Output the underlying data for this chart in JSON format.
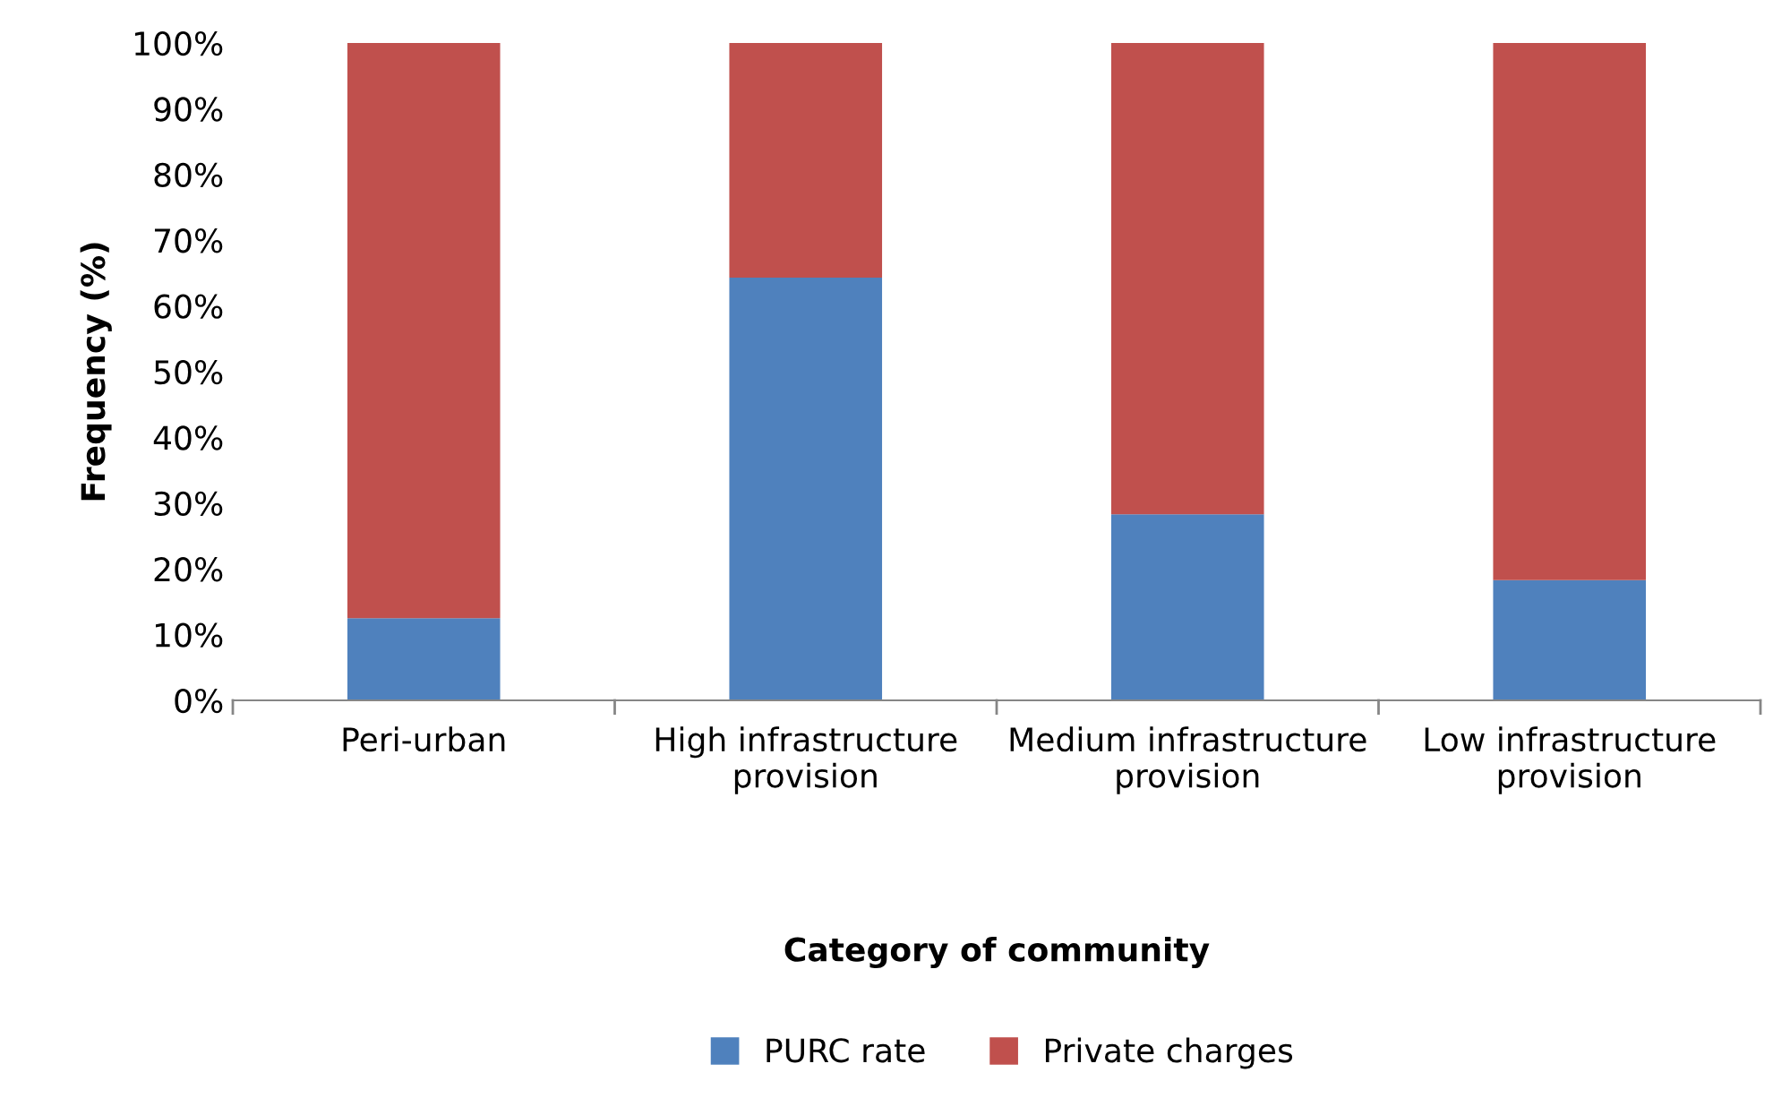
{
  "chart_data": {
    "type": "bar",
    "stacked": true,
    "xlabel": "Category of community",
    "ylabel": "Frequency (%)",
    "categories": [
      "Peri-urban",
      "High infrastructure provision",
      "Medium infrastructure provision",
      "Low infrastructure provision"
    ],
    "series": [
      {
        "name": "PURC rate",
        "color": "#4f81bd",
        "values": [
          12.5,
          64.3,
          28.3,
          18.3
        ]
      },
      {
        "name": "Private charges",
        "color": "#c0504d",
        "values": [
          87.5,
          35.7,
          71.7,
          81.7
        ]
      }
    ],
    "ylim": [
      0,
      100
    ],
    "yticks": [
      {
        "value": 0,
        "label": "0%"
      },
      {
        "value": 10,
        "label": "10%"
      },
      {
        "value": 20,
        "label": "20%"
      },
      {
        "value": 30,
        "label": "30%"
      },
      {
        "value": 40,
        "label": "40%"
      },
      {
        "value": 50,
        "label": "50%"
      },
      {
        "value": 60,
        "label": "60%"
      },
      {
        "value": 70,
        "label": "70%"
      },
      {
        "value": 80,
        "label": "80%"
      },
      {
        "value": 90,
        "label": "90%"
      },
      {
        "value": 100,
        "label": "100%"
      }
    ],
    "grid": false,
    "legend": "bottom"
  }
}
